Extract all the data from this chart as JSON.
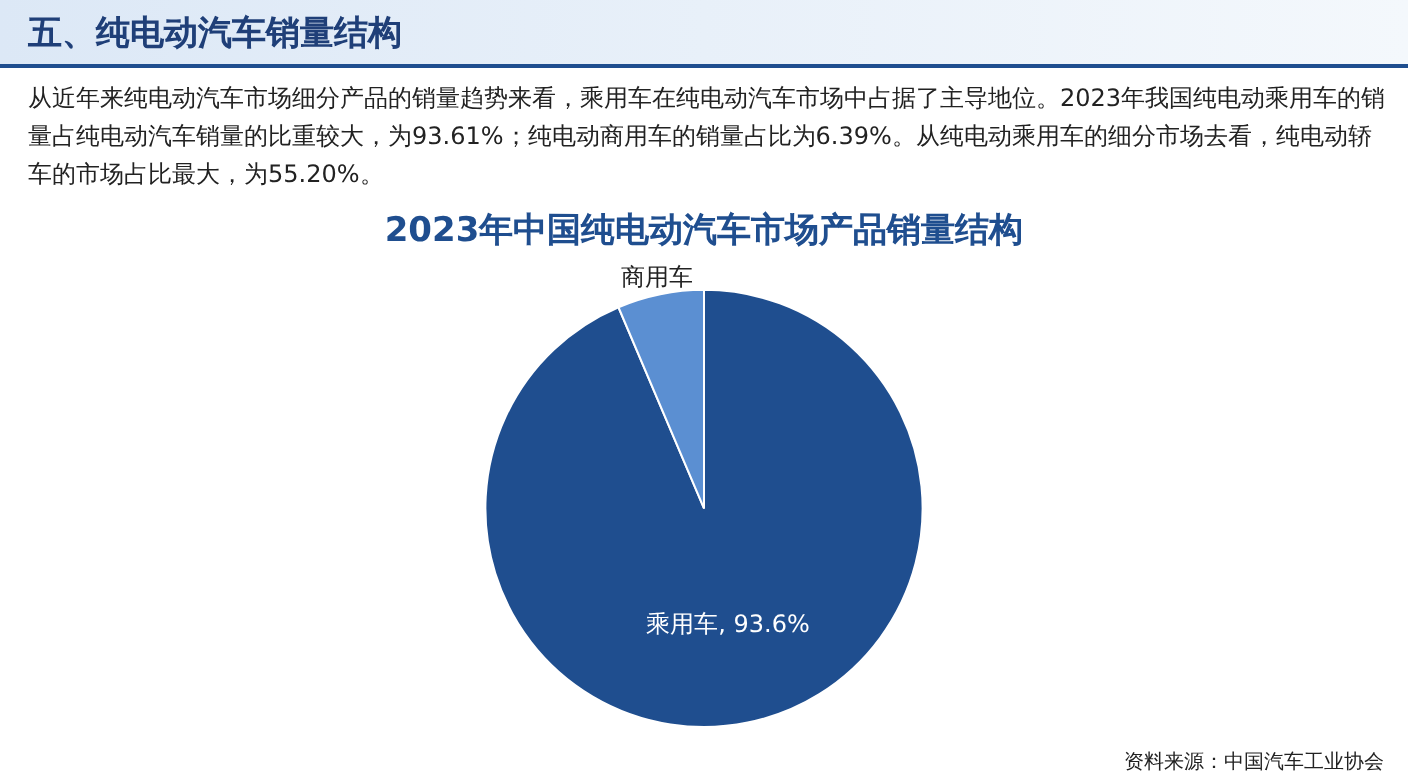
{
  "chart_data": {
    "type": "pie",
    "title": "2023年中国纯电动汽车市场产品销量结构",
    "categories": [
      "乘用车",
      "商用车"
    ],
    "values": [
      93.6,
      6.4
    ],
    "value_labels": [
      "93.6%",
      null
    ],
    "colors": [
      "#1f4e8f",
      "#5b8fd2"
    ],
    "legend": false,
    "annotations": [
      "五、纯电动汽车销量结构",
      "从近年来纯电动汽车市场细分产品的销量趋势来看，乘用车在纯电动汽车市场中占据了主导地位。2023年我国纯电动乘用车的销量占纯电动汽车销量的比重较大，为93.61%；纯电动商用车的销量占比为6.39%。从纯电动乘用车的细分市场去看，纯电动轿车的市场占比最大，为55.20%。",
      "资料来源：中国汽车工业协会"
    ]
  }
}
